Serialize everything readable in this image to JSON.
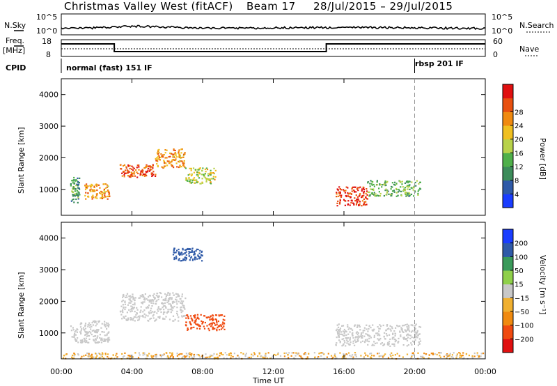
{
  "header": {
    "station": "Christmas Valley West (fitACF)",
    "beam": "Beam 17",
    "dates": "28/Jul/2015 – 29/Jul/2015"
  },
  "left_labels": {
    "nsky": "N.Sky",
    "freq": "Freq.",
    "freq_unit": "[MHz]",
    "cpid": "CPID"
  },
  "right_labels": {
    "nsearch": "N.Search",
    "nave": "Nave"
  },
  "axis_labels": {
    "nsky_ticks": [
      "10^5",
      "10^0"
    ],
    "nsearch_ticks": [
      "10^5",
      "10^0"
    ],
    "freq_ticks": [
      "18",
      "8"
    ],
    "nave_ticks": [
      "60",
      "0"
    ]
  },
  "cpid": {
    "segment1": "normal (fast) 151 IF",
    "segment2": "rbsp 201 IF",
    "switch_time_hours": 20
  },
  "colors": {
    "power": [
      "#1a3dff",
      "#2f5aa8",
      "#3c8c5a",
      "#4fb04a",
      "#b8d24a",
      "#f0c020",
      "#f08a10",
      "#e85010",
      "#e01010"
    ],
    "velocity": [
      "#e01010",
      "#f04a10",
      "#f08a10",
      "#f0b030",
      "#c8c8c8",
      "#8fd04a",
      "#3a9a5a",
      "#2f5aa8",
      "#1a3dff"
    ]
  },
  "chart_data": [
    {
      "type": "heatmap",
      "title": "",
      "xlabel": "Time UT",
      "ylabel": "Slant Range [km]",
      "x_range_hours": [
        0,
        24
      ],
      "x_tick_labels": [
        "00:00",
        "04:00",
        "08:00",
        "12:00",
        "16:00",
        "20:00",
        "00:00"
      ],
      "ylim": [
        180,
        4500
      ],
      "y_ticks": [
        1000,
        2000,
        3000,
        4000
      ],
      "colorbar": {
        "label": "Power [dB]",
        "ticks": [
          "4",
          "8",
          "12",
          "16",
          "20",
          "24",
          "28"
        ]
      },
      "features": [
        {
          "t_start": 0.5,
          "t_end": 1.0,
          "range_start": 600,
          "range_end": 1400,
          "power_db": 10
        },
        {
          "t_start": 1.3,
          "t_end": 2.7,
          "range_start": 700,
          "range_end": 1200,
          "power_db": 22
        },
        {
          "t_start": 3.3,
          "t_end": 5.3,
          "range_start": 1400,
          "range_end": 1800,
          "power_db": 26
        },
        {
          "t_start": 5.3,
          "t_end": 7.0,
          "range_start": 1700,
          "range_end": 2300,
          "power_db": 22
        },
        {
          "t_start": 7.0,
          "t_end": 8.7,
          "range_start": 1200,
          "range_end": 1700,
          "power_db": 16
        },
        {
          "t_start": 15.5,
          "t_end": 17.3,
          "range_start": 500,
          "range_end": 1100,
          "power_db": 28
        },
        {
          "t_start": 17.3,
          "t_end": 20.3,
          "range_start": 800,
          "range_end": 1300,
          "power_db": 12
        }
      ]
    },
    {
      "type": "heatmap",
      "title": "",
      "xlabel": "Time UT",
      "ylabel": "Slant Range [km]",
      "x_range_hours": [
        0,
        24
      ],
      "x_tick_labels": [
        "00:00",
        "04:00",
        "08:00",
        "12:00",
        "16:00",
        "20:00",
        "00:00"
      ],
      "ylim": [
        180,
        4500
      ],
      "y_ticks": [
        1000,
        2000,
        3000,
        4000
      ],
      "colorbar": {
        "label": "Velocity [m s⁻¹]",
        "ticks": [
          "200",
          "100",
          "50",
          "15",
          "−15",
          "−50",
          "−100",
          "−200"
        ]
      },
      "features": [
        {
          "t_start": 0.5,
          "t_end": 2.7,
          "range_start": 700,
          "range_end": 1400,
          "velocity": 0
        },
        {
          "t_start": 3.3,
          "t_end": 7.0,
          "range_start": 1400,
          "range_end": 2300,
          "velocity": 0
        },
        {
          "t_start": 7.0,
          "t_end": 9.2,
          "range_start": 1100,
          "range_end": 1600,
          "velocity": -150
        },
        {
          "t_start": 6.3,
          "t_end": 8.0,
          "range_start": 3300,
          "range_end": 3700,
          "velocity": 150
        },
        {
          "t_start": 15.5,
          "t_end": 20.3,
          "range_start": 600,
          "range_end": 1300,
          "velocity": 0
        },
        {
          "t_start": 0.0,
          "t_end": 24.0,
          "range_start": 200,
          "range_end": 400,
          "velocity": -30
        }
      ]
    }
  ]
}
